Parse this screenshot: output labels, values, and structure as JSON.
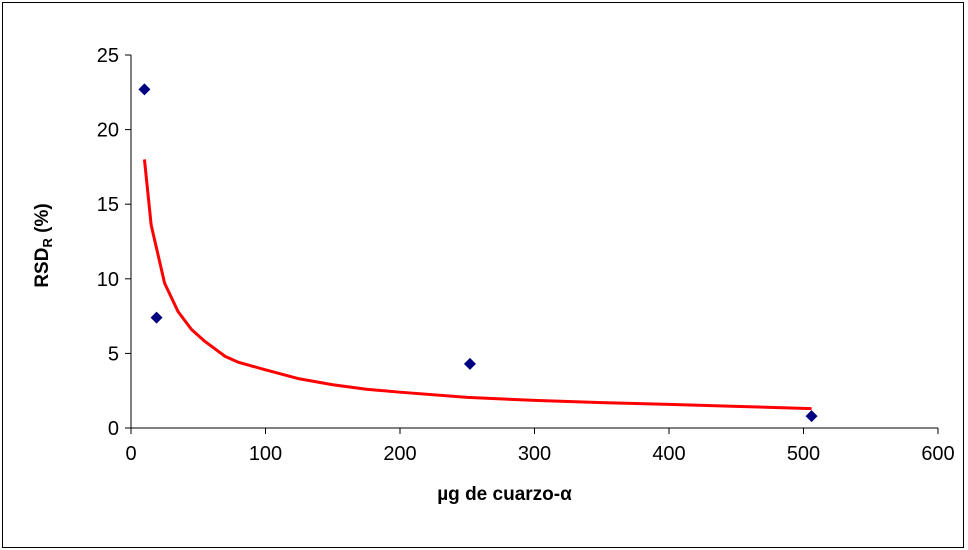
{
  "chart_data": {
    "type": "scatter",
    "title": "",
    "xlabel": "µg de cuarzo-α",
    "ylabel_main": "RSD",
    "ylabel_sub": "R",
    "ylabel_suffix": " (%)",
    "xlim": [
      0,
      600
    ],
    "ylim": [
      0,
      25
    ],
    "xticks": [
      0,
      100,
      200,
      300,
      400,
      500,
      600
    ],
    "yticks": [
      0,
      5,
      10,
      15,
      20,
      25
    ],
    "grid": false,
    "legend": "none",
    "series": [
      {
        "kind": "scatter",
        "marker": "diamond",
        "color": "#000080",
        "points": [
          {
            "x": 10,
            "y": 22.7
          },
          {
            "x": 19,
            "y": 7.4
          },
          {
            "x": 252,
            "y": 4.3
          },
          {
            "x": 506,
            "y": 0.8
          }
        ]
      },
      {
        "kind": "line",
        "color": "#ff0000",
        "points": [
          {
            "x": 10,
            "y": 18.0
          },
          {
            "x": 15,
            "y": 13.6
          },
          {
            "x": 25,
            "y": 9.7
          },
          {
            "x": 35,
            "y": 7.8
          },
          {
            "x": 45,
            "y": 6.6
          },
          {
            "x": 55,
            "y": 5.8
          },
          {
            "x": 70,
            "y": 4.8
          },
          {
            "x": 80,
            "y": 4.4
          },
          {
            "x": 100,
            "y": 3.9
          },
          {
            "x": 125,
            "y": 3.3
          },
          {
            "x": 150,
            "y": 2.9
          },
          {
            "x": 175,
            "y": 2.6
          },
          {
            "x": 200,
            "y": 2.4
          },
          {
            "x": 250,
            "y": 2.05
          },
          {
            "x": 300,
            "y": 1.85
          },
          {
            "x": 350,
            "y": 1.7
          },
          {
            "x": 400,
            "y": 1.58
          },
          {
            "x": 450,
            "y": 1.45
          },
          {
            "x": 506,
            "y": 1.3
          }
        ]
      }
    ]
  }
}
